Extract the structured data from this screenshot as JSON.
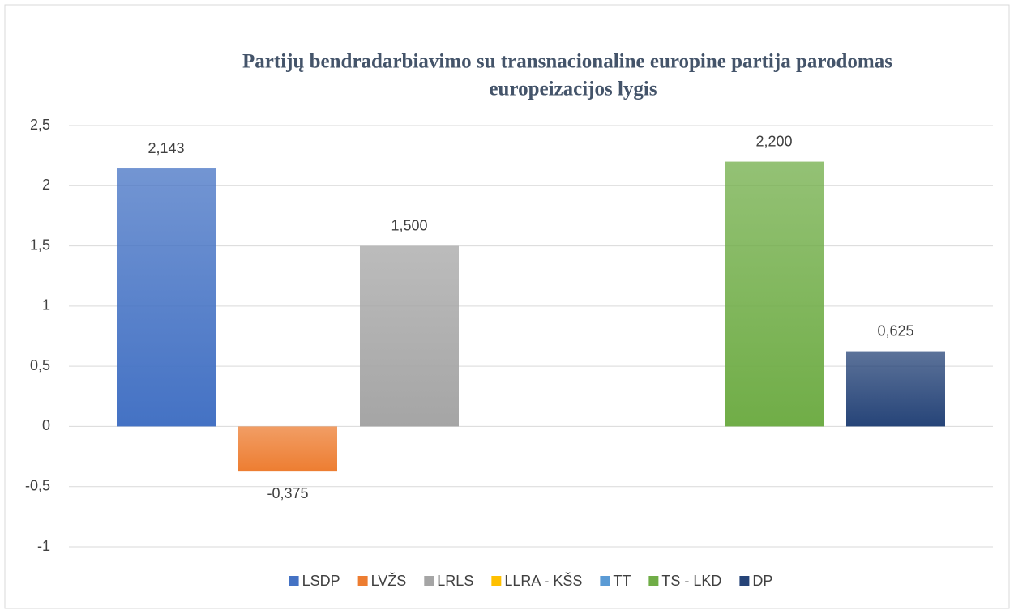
{
  "chart_data": {
    "type": "bar",
    "title": [
      "Partijų bendradarbiavimo su transnacionaline europine partija parodomas",
      "europeizacijos lygis"
    ],
    "categories": [
      null
    ],
    "series": [
      {
        "name": "LSDP",
        "color": "#4472c4",
        "values": [
          2.143
        ],
        "value_labels": [
          "2,143"
        ]
      },
      {
        "name": "LVŽS",
        "color": "#ed7d31",
        "values": [
          -0.375
        ],
        "value_labels": [
          "-0,375"
        ]
      },
      {
        "name": "LRLS",
        "color": "#a5a5a5",
        "values": [
          1.5
        ],
        "value_labels": [
          "1,500"
        ]
      },
      {
        "name": "LLRA - KŠS",
        "color": "#ffc000",
        "values": [
          null
        ],
        "value_labels": [
          null
        ]
      },
      {
        "name": "TT",
        "color": "#5b9bd5",
        "values": [
          null
        ],
        "value_labels": [
          null
        ]
      },
      {
        "name": "TS - LKD",
        "color": "#70ad47",
        "values": [
          2.2
        ],
        "value_labels": [
          "2,200"
        ]
      },
      {
        "name": "DP",
        "color": "#264478",
        "values": [
          0.625
        ],
        "value_labels": [
          "0,625"
        ]
      }
    ],
    "ylim": [
      -1,
      2.5
    ],
    "yticks": [
      {
        "value": 2.5,
        "label": "2,5"
      },
      2,
      {
        "value": 1.5,
        "label": "1,5"
      },
      1,
      {
        "value": 0.5,
        "label": "0,5"
      },
      0,
      {
        "value": -0.5,
        "label": "-0,5"
      },
      -1
    ],
    "grid": true,
    "legend": "bottom"
  }
}
